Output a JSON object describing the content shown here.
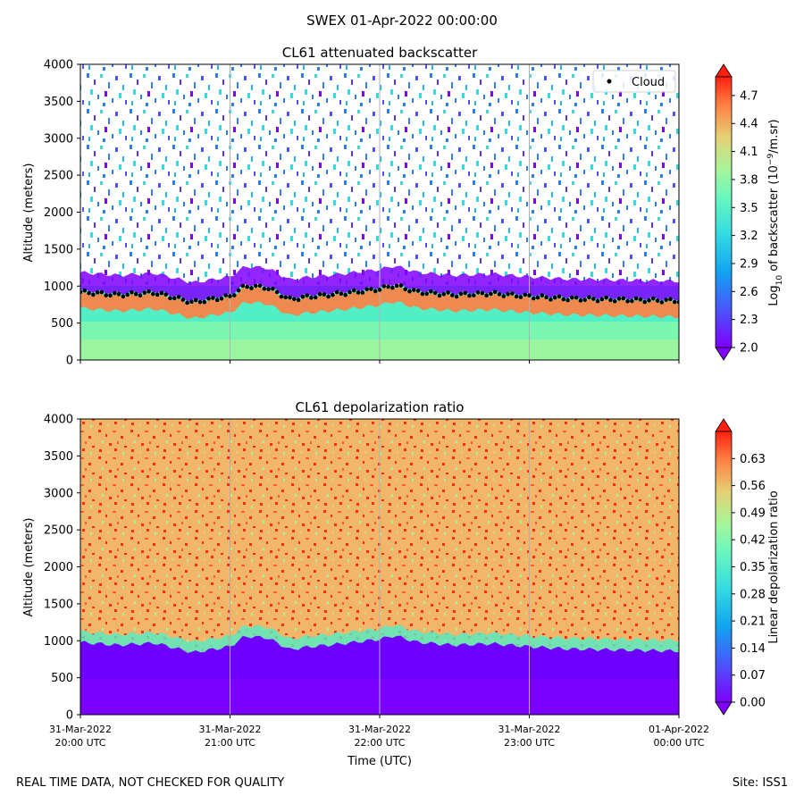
{
  "figure": {
    "title": "SWEX 01-Apr-2022 00:00:00",
    "footer_left": "REAL TIME DATA, NOT CHECKED FOR QUALITY",
    "footer_right": "Site: ISS1"
  },
  "chart_data": [
    {
      "type": "heatmap",
      "title": "CL61 attenuated backscatter",
      "ylabel": "Altitude (meters)",
      "ylim": [
        0,
        4000
      ],
      "yticks": [
        "0",
        "500",
        "1000",
        "1500",
        "2000",
        "2500",
        "3000",
        "3500",
        "4000"
      ],
      "xlim": [
        "31-Mar-2022 20:00 UTC",
        "01-Apr-2022 00:00 UTC"
      ],
      "colorbar": {
        "label": "Log10 of backscatter (10^-9/m.sr)",
        "range": [
          2.0,
          4.9
        ],
        "ticks": [
          "2.0",
          "2.3",
          "2.6",
          "2.9",
          "3.2",
          "3.5",
          "3.8",
          "4.1",
          "4.4",
          "4.7"
        ],
        "colormap": "rainbow",
        "extend": "both"
      },
      "legend": {
        "entries": [
          "Cloud"
        ],
        "placement": "upper-right"
      },
      "cloud_base_height": {
        "x_hours": [
          20.0,
          20.25,
          20.5,
          20.75,
          21.0,
          21.1,
          21.25,
          21.4,
          21.5,
          21.75,
          22.0,
          22.1,
          22.25,
          22.5,
          22.75,
          23.0,
          23.25,
          23.5,
          23.75,
          24.0
        ],
        "y": [
          920,
          880,
          910,
          780,
          860,
          1000,
          980,
          820,
          850,
          900,
          960,
          1010,
          920,
          880,
          900,
          860,
          830,
          820,
          810,
          800
        ]
      }
    },
    {
      "type": "heatmap",
      "title": "CL61 depolarization ratio",
      "ylabel": "Altitude (meters)",
      "xlabel": "Time (UTC)",
      "ylim": [
        0,
        4000
      ],
      "yticks": [
        "0",
        "500",
        "1000",
        "1500",
        "2000",
        "2500",
        "3000",
        "3500",
        "4000"
      ],
      "xticks": [
        {
          "date": "31-Mar-2022",
          "time": "20:00 UTC"
        },
        {
          "date": "31-Mar-2022",
          "time": "21:00 UTC"
        },
        {
          "date": "31-Mar-2022",
          "time": "22:00 UTC"
        },
        {
          "date": "31-Mar-2022",
          "time": "23:00 UTC"
        },
        {
          "date": "01-Apr-2022",
          "time": "00:00 UTC"
        }
      ],
      "colorbar": {
        "label": "Linear depolarization ratio",
        "range": [
          0.0,
          0.7
        ],
        "ticks": [
          "0.00",
          "0.07",
          "0.14",
          "0.21",
          "0.28",
          "0.35",
          "0.42",
          "0.49",
          "0.56",
          "0.63"
        ],
        "colormap": "rainbow",
        "extend": "both"
      }
    }
  ]
}
